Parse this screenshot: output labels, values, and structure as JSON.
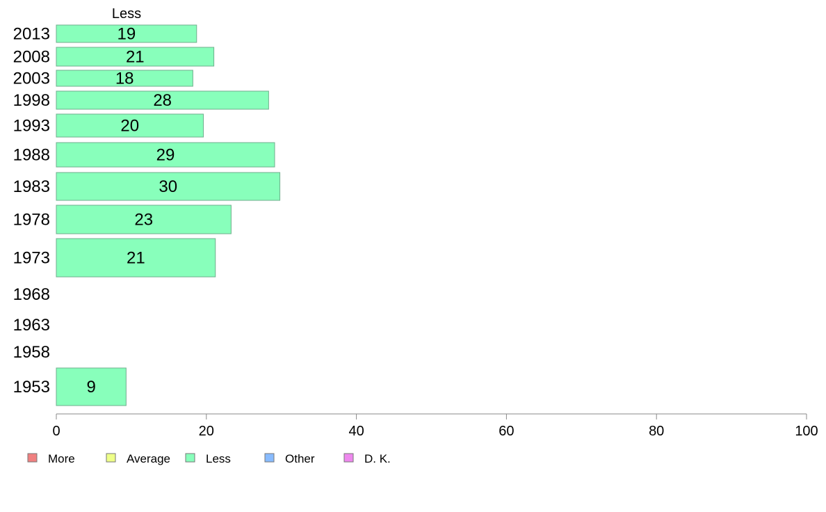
{
  "chart_data": {
    "type": "bar",
    "orientation": "horizontal",
    "column_header": "Less",
    "categories": [
      "2013",
      "2008",
      "2003",
      "1998",
      "1993",
      "1988",
      "1983",
      "1978",
      "1973",
      "1968",
      "1963",
      "1958",
      "1953"
    ],
    "series": [
      {
        "name": "Less",
        "color": "#88ffbb",
        "values": [
          19,
          21,
          18,
          28,
          20,
          29,
          30,
          23,
          21,
          null,
          null,
          null,
          9
        ],
        "plotted_lengths": [
          18.7,
          21.0,
          18.2,
          28.3,
          19.6,
          29.1,
          29.8,
          23.3,
          21.2,
          null,
          null,
          null,
          9.3
        ]
      }
    ],
    "x_axis": {
      "range": [
        0,
        100
      ],
      "ticks": [
        "0",
        "20",
        "40",
        "60",
        "80",
        "100"
      ]
    },
    "grid": false,
    "legend": {
      "placement": "bottom-left",
      "items": [
        {
          "label": "More",
          "color": "#f08080"
        },
        {
          "label": "Average",
          "color": "#eeff88"
        },
        {
          "label": "Less",
          "color": "#88ffbb"
        },
        {
          "label": "Other",
          "color": "#88bbff"
        },
        {
          "label": "D. K.",
          "color": "#ee88ee"
        }
      ]
    }
  }
}
